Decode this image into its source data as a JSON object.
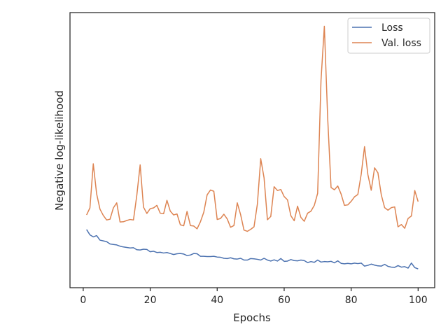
{
  "chart_data": {
    "type": "line",
    "title": "",
    "xlabel": "Epochs",
    "ylabel": "Negative log-likelihood",
    "xlim": [
      -3.95,
      104.95
    ],
    "ylim": [
      0,
      1
    ],
    "y_ticks_shown": false,
    "x_ticks": [
      0,
      20,
      40,
      60,
      80,
      100
    ],
    "x_tick_labels": [
      "0",
      "20",
      "40",
      "60",
      "80",
      "100"
    ],
    "grid": false,
    "legend_position": "top-right",
    "x": [
      1,
      2,
      3,
      4,
      5,
      6,
      7,
      8,
      9,
      10,
      11,
      12,
      13,
      14,
      15,
      16,
      17,
      18,
      19,
      20,
      21,
      22,
      23,
      24,
      25,
      26,
      27,
      28,
      29,
      30,
      31,
      32,
      33,
      34,
      35,
      36,
      37,
      38,
      39,
      40,
      41,
      42,
      43,
      44,
      45,
      46,
      47,
      48,
      49,
      50,
      51,
      52,
      53,
      54,
      55,
      56,
      57,
      58,
      59,
      60,
      61,
      62,
      63,
      64,
      65,
      66,
      67,
      68,
      69,
      70,
      71,
      72,
      73,
      74,
      75,
      76,
      77,
      78,
      79,
      80,
      81,
      82,
      83,
      84,
      85,
      86,
      87,
      88,
      89,
      90,
      91,
      92,
      93,
      94,
      95,
      96,
      97,
      98,
      99,
      100
    ],
    "series": [
      {
        "name": "Loss",
        "color": "#4c72b0",
        "values": [
          0.189,
          0.168,
          0.16,
          0.165,
          0.147,
          0.144,
          0.141,
          0.132,
          0.13,
          0.128,
          0.123,
          0.12,
          0.118,
          0.116,
          0.117,
          0.109,
          0.108,
          0.111,
          0.11,
          0.101,
          0.103,
          0.098,
          0.099,
          0.096,
          0.098,
          0.094,
          0.09,
          0.093,
          0.094,
          0.092,
          0.086,
          0.088,
          0.094,
          0.093,
          0.083,
          0.083,
          0.082,
          0.082,
          0.083,
          0.08,
          0.079,
          0.075,
          0.074,
          0.077,
          0.073,
          0.072,
          0.075,
          0.068,
          0.068,
          0.074,
          0.073,
          0.071,
          0.068,
          0.075,
          0.068,
          0.064,
          0.069,
          0.064,
          0.074,
          0.063,
          0.064,
          0.07,
          0.066,
          0.065,
          0.068,
          0.066,
          0.058,
          0.062,
          0.059,
          0.068,
          0.06,
          0.062,
          0.061,
          0.063,
          0.057,
          0.065,
          0.055,
          0.053,
          0.055,
          0.053,
          0.056,
          0.054,
          0.056,
          0.044,
          0.047,
          0.052,
          0.048,
          0.045,
          0.044,
          0.051,
          0.043,
          0.04,
          0.039,
          0.046,
          0.04,
          0.042,
          0.036,
          0.056,
          0.038,
          0.033
        ]
      },
      {
        "name": "Val. loss",
        "color": "#dd8452",
        "values": [
          0.247,
          0.275,
          0.45,
          0.331,
          0.27,
          0.245,
          0.227,
          0.23,
          0.275,
          0.295,
          0.219,
          0.22,
          0.225,
          0.229,
          0.227,
          0.325,
          0.446,
          0.278,
          0.253,
          0.272,
          0.275,
          0.285,
          0.254,
          0.252,
          0.305,
          0.262,
          0.247,
          0.251,
          0.208,
          0.204,
          0.261,
          0.205,
          0.203,
          0.192,
          0.22,
          0.258,
          0.327,
          0.346,
          0.341,
          0.229,
          0.233,
          0.25,
          0.231,
          0.198,
          0.205,
          0.295,
          0.248,
          0.187,
          0.182,
          0.19,
          0.2,
          0.29,
          0.47,
          0.394,
          0.228,
          0.241,
          0.359,
          0.344,
          0.348,
          0.32,
          0.307,
          0.244,
          0.224,
          0.282,
          0.237,
          0.222,
          0.254,
          0.262,
          0.285,
          0.333,
          0.781,
          0.996,
          0.63,
          0.356,
          0.347,
          0.362,
          0.33,
          0.285,
          0.287,
          0.301,
          0.319,
          0.328,
          0.408,
          0.518,
          0.407,
          0.345,
          0.434,
          0.414,
          0.327,
          0.276,
          0.266,
          0.276,
          0.279,
          0.2,
          0.209,
          0.194,
          0.233,
          0.243,
          0.344,
          0.3
        ]
      }
    ]
  }
}
